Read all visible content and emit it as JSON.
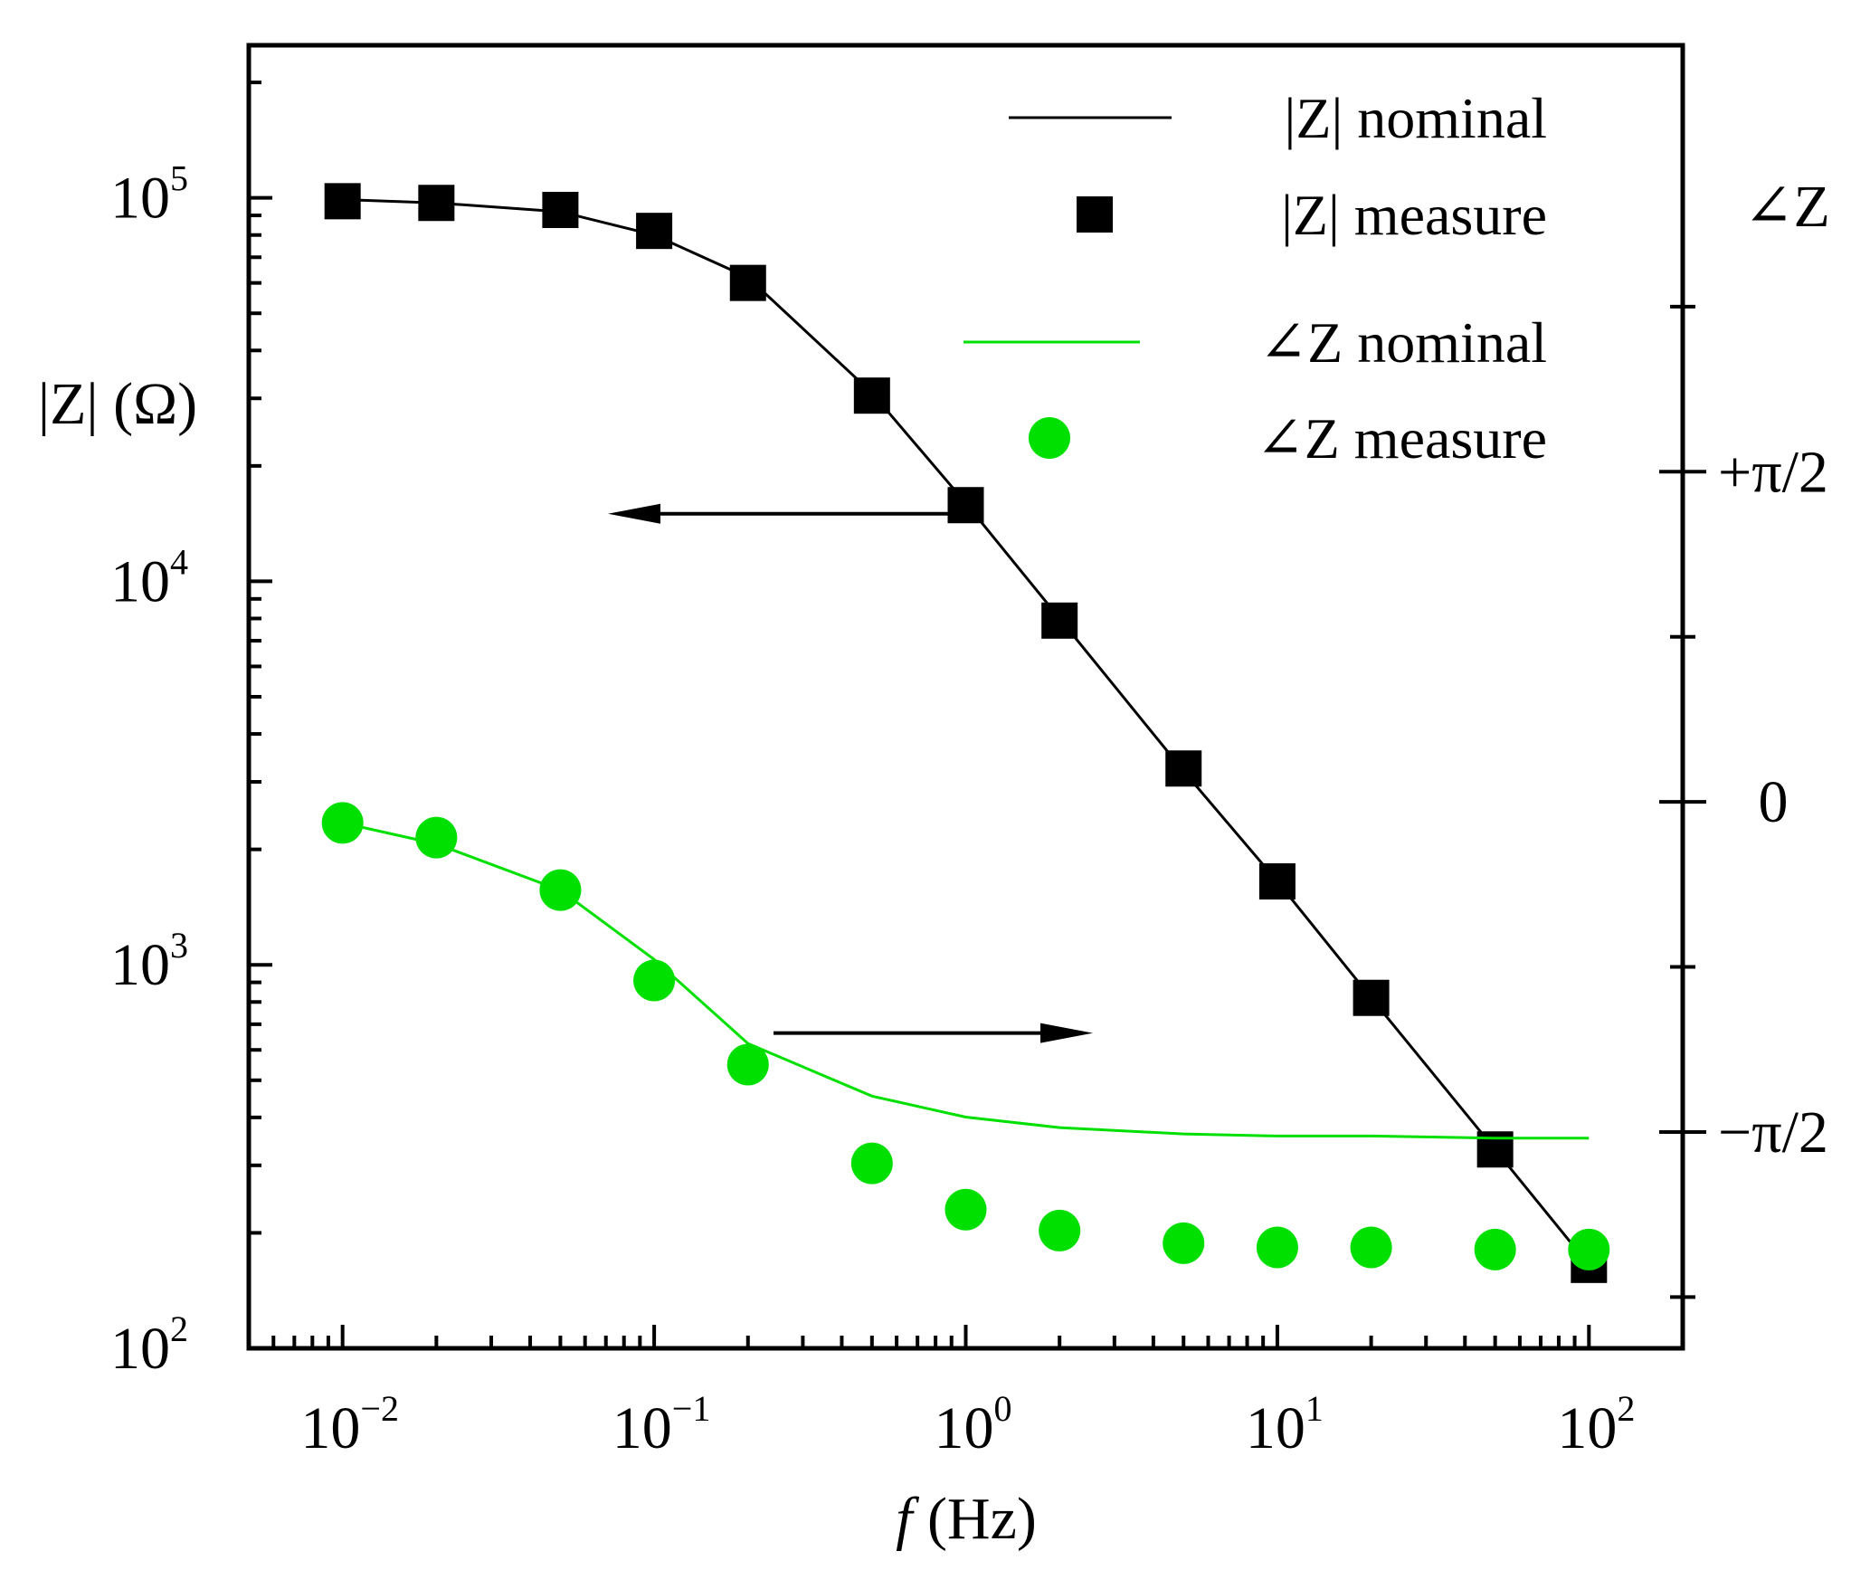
{
  "chart_data": {
    "type": "line",
    "x": [
      0.01,
      0.02,
      0.05,
      0.1,
      0.2,
      0.5,
      1,
      2,
      5,
      10,
      20,
      50,
      100
    ],
    "x_scale": "log",
    "xlim": [
      0.005,
      200
    ],
    "xlabel": {
      "italic": "f",
      "rest": " (Hz)"
    },
    "xticks": [
      {
        "value": 0.01,
        "base": "10",
        "exp": "−2"
      },
      {
        "value": 0.1,
        "base": "10",
        "exp": "−1"
      },
      {
        "value": 1,
        "base": "10",
        "exp": "0"
      },
      {
        "value": 10,
        "base": "10",
        "exp": "1"
      },
      {
        "value": 100,
        "base": "10",
        "exp": "2"
      }
    ],
    "y_left": {
      "label": "|Z| (Ω)",
      "scale": "log",
      "ylim": [
        100,
        250000
      ],
      "ticks": [
        {
          "value": 100,
          "base": "10",
          "exp": "2"
        },
        {
          "value": 1000,
          "base": "10",
          "exp": "3"
        },
        {
          "value": 10000,
          "base": "10",
          "exp": "4"
        },
        {
          "value": 100000,
          "base": "10",
          "exp": "5"
        }
      ]
    },
    "y_right": {
      "label": "∠Z",
      "ylim": [
        -2.6,
        3.6
      ],
      "major_ticks": [
        -1.5708,
        0,
        1.5708
      ],
      "tick_labels": [
        "−π/2",
        "0",
        "+π/2"
      ],
      "minor_ticks": [
        -2.356,
        -0.785,
        0.785,
        2.356
      ]
    },
    "series": [
      {
        "name": "|Z| nominal",
        "axis": "left",
        "kind": "line",
        "color": "#000000",
        "values": [
          99000,
          97000,
          92000,
          80000,
          62000,
          31000,
          16000,
          8000,
          3200,
          1650,
          820,
          330,
          165
        ]
      },
      {
        "name": "|Z| measure",
        "axis": "left",
        "kind": "marker",
        "marker": "square",
        "color": "#000000",
        "values": [
          98000,
          97000,
          93000,
          82000,
          60000,
          30500,
          15800,
          7900,
          3250,
          1650,
          820,
          330,
          165
        ]
      },
      {
        "name": "∠Z nominal",
        "axis": "right",
        "kind": "line",
        "color": "#00e000",
        "values": [
          -0.1,
          -0.2,
          -0.42,
          -0.75,
          -1.15,
          -1.4,
          -1.5,
          -1.55,
          -1.58,
          -1.59,
          -1.59,
          -1.6,
          -1.6
        ]
      },
      {
        "name": "∠Z measure",
        "axis": "right",
        "kind": "marker",
        "marker": "circle",
        "color": "#00e000",
        "values": [
          -0.1,
          -0.17,
          -0.42,
          -0.85,
          -1.25,
          -1.72,
          -1.94,
          -2.04,
          -2.1,
          -2.12,
          -2.12,
          -2.13,
          -2.13
        ]
      }
    ],
    "annotations": [
      {
        "type": "arrow",
        "direction": "left",
        "points_to": "y_left"
      },
      {
        "type": "arrow",
        "direction": "right",
        "points_to": "y_right"
      }
    ],
    "legend": {
      "position": "top-right",
      "entries": [
        "|Z| nominal",
        "|Z| measure",
        "∠Z nominal",
        "∠Z measure"
      ]
    }
  }
}
